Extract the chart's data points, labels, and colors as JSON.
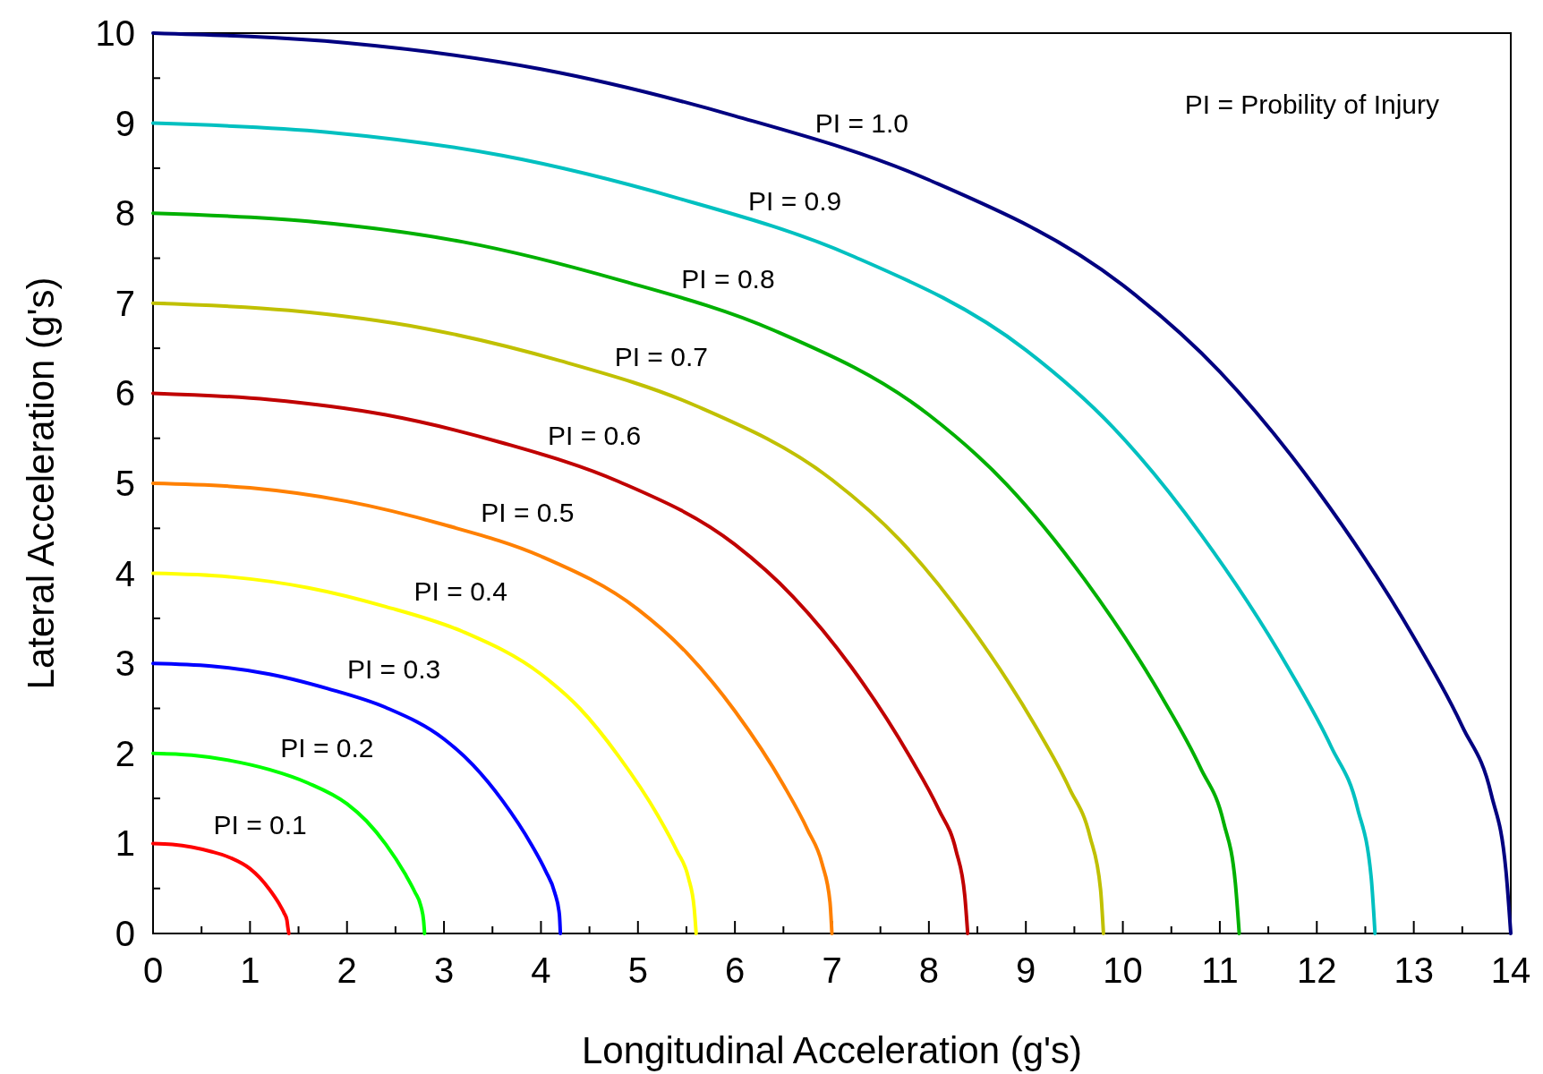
{
  "chart_data": {
    "type": "line",
    "xlabel": "Longitudinal Acceleration (g's)",
    "ylabel": "Lateral Acceleration (g's)",
    "xlim": [
      0,
      14
    ],
    "ylim": [
      0,
      10
    ],
    "xticks": [
      0,
      {
        "value": 0.5,
        "label": null
      },
      1,
      {
        "value": 1.5,
        "label": null
      },
      2,
      {
        "value": 2.5,
        "label": null
      },
      3,
      {
        "value": 3.5,
        "label": null
      },
      4,
      {
        "value": 4.5,
        "label": null
      },
      5,
      {
        "value": 5.5,
        "label": null
      },
      6,
      {
        "value": 6.5,
        "label": null
      },
      7,
      {
        "value": 7.5,
        "label": null
      },
      8,
      {
        "value": 8.5,
        "label": null
      },
      9,
      {
        "value": 9.5,
        "label": null
      },
      10,
      {
        "value": 10.5,
        "label": null
      },
      11,
      {
        "value": 11.5,
        "label": null
      },
      12,
      {
        "value": 12.5,
        "label": null
      },
      13,
      {
        "value": 13.5,
        "label": null
      },
      14
    ],
    "yticks": [
      0,
      {
        "value": 0.5,
        "label": null
      },
      1,
      {
        "value": 1.5,
        "label": null
      },
      2,
      {
        "value": 2.5,
        "label": null
      },
      3,
      {
        "value": 3.5,
        "label": null
      },
      4,
      {
        "value": 4.5,
        "label": null
      },
      5,
      {
        "value": 5.5,
        "label": null
      },
      6,
      {
        "value": 6.5,
        "label": null
      },
      7,
      {
        "value": 7.5,
        "label": null
      },
      8,
      {
        "value": 8.5,
        "label": null
      },
      9,
      {
        "value": 9.5,
        "label": null
      },
      10
    ],
    "grid": false,
    "marker": "none",
    "line_style": "solid",
    "series": [
      {
        "name": "PI = 0.1",
        "color": "#ff0000",
        "x": [
          0,
          0.2,
          0.4,
          0.6,
          0.8,
          1,
          1.1,
          1.2,
          1.3,
          1.35,
          1.38,
          1.39,
          1.4
        ],
        "values": [
          1,
          0.99,
          0.96,
          0.91,
          0.84,
          0.72,
          0.62,
          0.49,
          0.33,
          0.23,
          0.15,
          0.07,
          0
        ]
      },
      {
        "name": "PI = 0.2",
        "color": "#00ff00",
        "x": [
          0,
          0.4,
          0.8,
          1.2,
          1.6,
          2,
          2.2,
          2.4,
          2.6,
          2.7,
          2.76,
          2.79,
          2.8
        ],
        "values": [
          2,
          1.98,
          1.92,
          1.82,
          1.67,
          1.44,
          1.25,
          0.99,
          0.66,
          0.46,
          0.31,
          0.14,
          0
        ]
      },
      {
        "name": "PI = 0.3",
        "color": "#0000ff",
        "x": [
          0,
          0.6,
          1.2,
          1.8,
          2.4,
          3,
          3.3,
          3.6,
          3.9,
          4.05,
          4.14,
          4.19,
          4.2
        ],
        "values": [
          3,
          2.97,
          2.88,
          2.72,
          2.51,
          2.16,
          1.87,
          1.48,
          0.99,
          0.69,
          0.46,
          0.21,
          0
        ]
      },
      {
        "name": "PI = 0.4",
        "color": "#ffff00",
        "x": [
          0,
          0.8,
          1.6,
          2.4,
          3.2,
          4,
          4.4,
          4.8,
          5.2,
          5.4,
          5.52,
          5.58,
          5.6
        ],
        "values": [
          4,
          3.96,
          3.84,
          3.63,
          3.35,
          2.88,
          2.5,
          1.97,
          1.32,
          0.92,
          0.62,
          0.28,
          0
        ]
      },
      {
        "name": "PI = 0.5",
        "color": "#ff8000",
        "x": [
          0,
          1,
          2,
          3,
          4,
          5,
          5.5,
          6,
          6.5,
          6.75,
          6.9,
          6.98,
          7
        ],
        "values": [
          5,
          4.95,
          4.8,
          4.54,
          4.19,
          3.6,
          3.12,
          2.47,
          1.65,
          1.15,
          0.77,
          0.35,
          0
        ]
      },
      {
        "name": "PI = 0.6",
        "color": "#c00000",
        "x": [
          0,
          1.2,
          2.4,
          3.6,
          4.8,
          6,
          6.6,
          7.2,
          7.8,
          8.1,
          8.28,
          8.37,
          8.4
        ],
        "values": [
          6,
          5.93,
          5.76,
          5.45,
          5.02,
          4.32,
          3.74,
          2.96,
          1.97,
          1.38,
          0.92,
          0.42,
          0
        ]
      },
      {
        "name": "PI = 0.7",
        "color": "#c0c000",
        "x": [
          0,
          1.4,
          2.8,
          4.2,
          5.6,
          7,
          7.7,
          8.4,
          9.1,
          9.45,
          9.66,
          9.77,
          9.8
        ],
        "values": [
          7,
          6.92,
          6.72,
          6.36,
          5.86,
          5.04,
          4.37,
          3.45,
          2.3,
          1.61,
          1.08,
          0.49,
          0
        ]
      },
      {
        "name": "PI = 0.8",
        "color": "#00b000",
        "x": [
          0,
          1.6,
          3.2,
          4.8,
          6.4,
          8,
          8.8,
          9.6,
          10.4,
          10.8,
          11.04,
          11.16,
          11.2
        ],
        "values": [
          8,
          7.91,
          7.68,
          7.26,
          6.7,
          5.76,
          4.99,
          3.94,
          2.63,
          1.84,
          1.23,
          0.56,
          0
        ]
      },
      {
        "name": "PI = 0.9",
        "color": "#00c0c0",
        "x": [
          0,
          1.8,
          3.6,
          5.4,
          7.2,
          9,
          9.9,
          10.8,
          11.7,
          12.15,
          12.42,
          12.56,
          12.6
        ],
        "values": [
          9,
          8.9,
          8.64,
          8.17,
          7.53,
          6.48,
          5.62,
          4.44,
          2.96,
          2.07,
          1.39,
          0.63,
          0
        ]
      },
      {
        "name": "PI = 1.0",
        "color": "#000080",
        "x": [
          0,
          2,
          4,
          6,
          8,
          10,
          11,
          12,
          13,
          13.5,
          13.8,
          13.95,
          14
        ],
        "values": [
          10,
          9.89,
          9.6,
          9.08,
          8.37,
          7.2,
          6.24,
          4.93,
          3.29,
          2.3,
          1.54,
          0.7,
          0
        ]
      }
    ],
    "annotations": [
      "PI = Probility of Injury"
    ]
  }
}
